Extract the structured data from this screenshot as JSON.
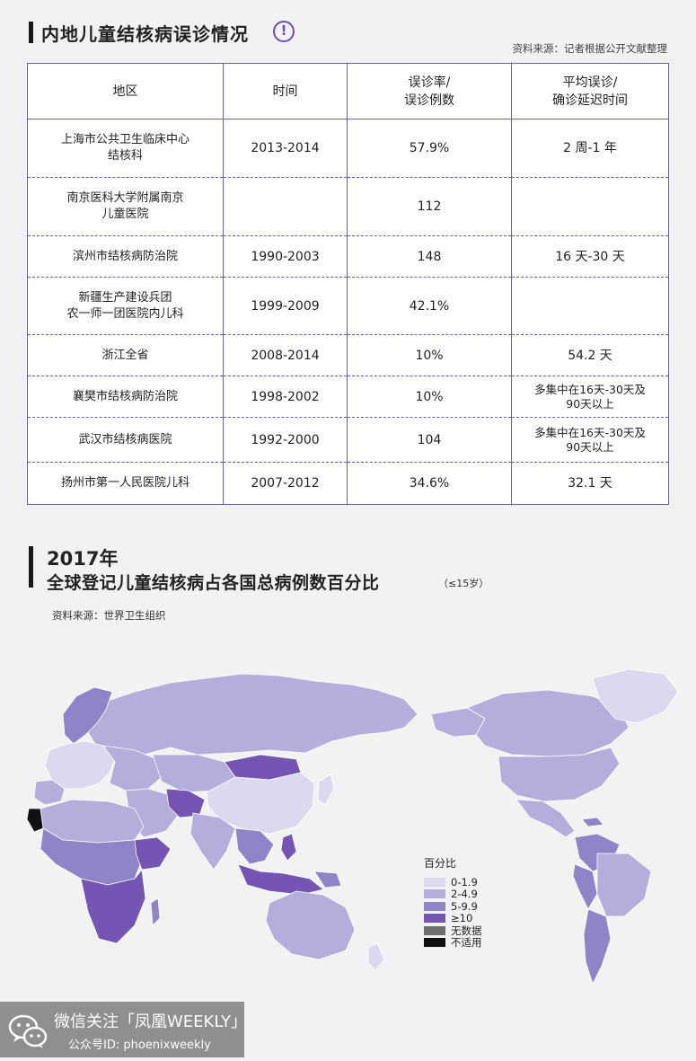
{
  "section1": {
    "title": "内地儿童结核病误诊情况",
    "source": "资料来源：记者根据公开文献整理"
  },
  "table": {
    "headers": [
      "地区",
      "时间",
      "误诊率/\n误诊例数",
      "平均误诊/\n确诊延迟时间"
    ],
    "rows": [
      [
        "上海市公共卫生临床中心\n结核科",
        "2013-2014",
        "57.9%",
        "2 周-1 年"
      ],
      [
        "南京医科大学附属南京\n儿童医院",
        "",
        "112",
        ""
      ],
      [
        "滨州市结核病防治院",
        "1990-2003",
        "148",
        "16 天-30 天"
      ],
      [
        "新疆生产建设兵团\n农一师一团医院内儿科",
        "1999-2009",
        "42.1%",
        ""
      ],
      [
        "浙江全省",
        "2008-2014",
        "10%",
        "54.2 天"
      ],
      [
        "襄樊市结核病防治院",
        "1998-2002",
        "10%",
        "多集中在16天-30天及\n90天以上"
      ],
      [
        "武汉市结核病医院",
        "1992-2000",
        "104",
        "多集中在16天-30天及\n90天以上"
      ],
      [
        "扬州市第一人民医院儿科",
        "2007-2012",
        "34.6%",
        "32.1 天"
      ]
    ]
  },
  "section2": {
    "year": "2017年",
    "title": "全球登记儿童结核病占各国总病例数百分比",
    "note": "（≤15岁）",
    "source": "资料来源：世界卫生组织"
  },
  "legend": {
    "title": "百分比",
    "items": [
      {
        "label": "0-1.9",
        "color": "#dcd9ee"
      },
      {
        "label": "2-4.9",
        "color": "#b3aedb"
      },
      {
        "label": "5-9.9",
        "color": "#9084c8"
      },
      {
        "label": "≥10",
        "color": "#7455b4"
      },
      {
        "label": "无数据",
        "color": "#6f6f6f"
      },
      {
        "label": "不适用",
        "color": "#111111"
      }
    ]
  },
  "watermark": {
    "line1": "微信关注「凤凰WEEKLY」",
    "line2": "公众号ID: phoenixweekly"
  }
}
